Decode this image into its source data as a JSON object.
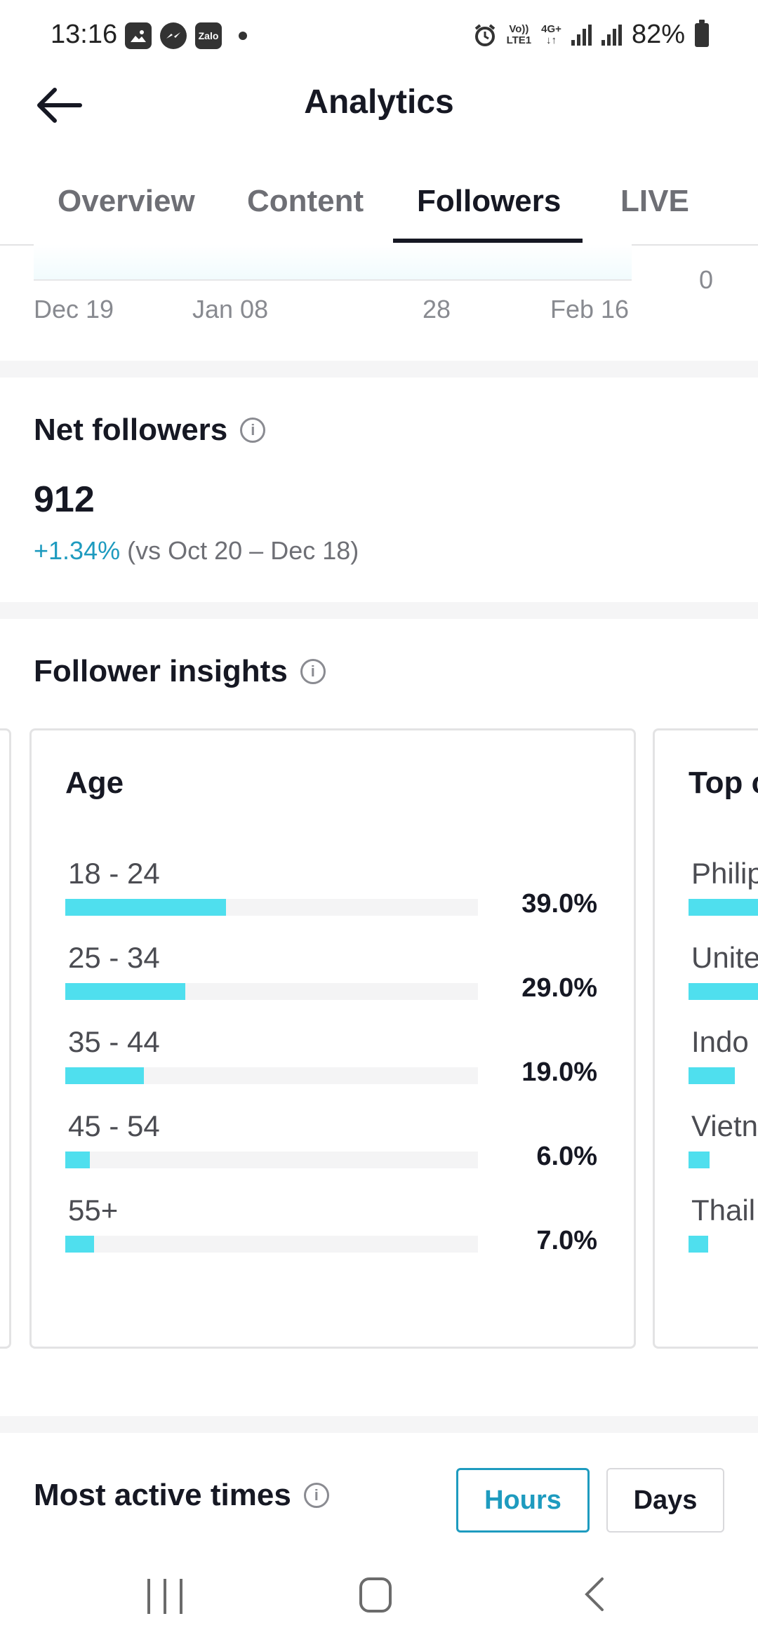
{
  "status_bar": {
    "time": "13:16",
    "app_icons": [
      "gallery-icon",
      "messenger-icon",
      "zalo-icon"
    ],
    "zalo_label": "Zalo",
    "network_top": "Vo))",
    "network_bottom": "LTE1",
    "network_type": "4G+",
    "battery": "82%"
  },
  "header": {
    "title": "Analytics"
  },
  "tabs": [
    {
      "label": "Overview",
      "active": false
    },
    {
      "label": "Content",
      "active": false
    },
    {
      "label": "Followers",
      "active": true
    },
    {
      "label": "LIVE",
      "active": false
    }
  ],
  "chart_remnant": {
    "x_ticks": [
      "Dec 19",
      "Jan 08",
      "28",
      "Feb 16"
    ],
    "y_tick": "0"
  },
  "net_followers": {
    "title": "Net followers",
    "value": "912",
    "change": "+1.34%",
    "comparison": "(vs Oct 20 – Dec 18)"
  },
  "follower_insights": {
    "title": "Follower insights",
    "age_card": {
      "title": "Age",
      "rows": [
        {
          "label": "18 - 24",
          "percent": "39.0%",
          "value": 39.0
        },
        {
          "label": "25 - 34",
          "percent": "29.0%",
          "value": 29.0
        },
        {
          "label": "35 - 44",
          "percent": "19.0%",
          "value": 19.0
        },
        {
          "label": "45 - 54",
          "percent": "6.0%",
          "value": 6.0
        },
        {
          "label": "55+",
          "percent": "7.0%",
          "value": 7.0
        }
      ]
    },
    "countries_card": {
      "title_visible": "Top c",
      "rows": [
        {
          "label_visible": "Philip"
        },
        {
          "label_visible": "Unite"
        },
        {
          "label_visible": "Indo"
        },
        {
          "label_visible": "Vietn"
        },
        {
          "label_visible": "Thail"
        }
      ]
    }
  },
  "most_active": {
    "title": "Most active times",
    "hours_label": "Hours",
    "days_label": "Days",
    "selected": "Hours"
  },
  "colors": {
    "accent": "#1e9bbf",
    "bar_fill": "#4fdfee",
    "text_primary": "#161823",
    "text_secondary": "#6e6f75"
  }
}
